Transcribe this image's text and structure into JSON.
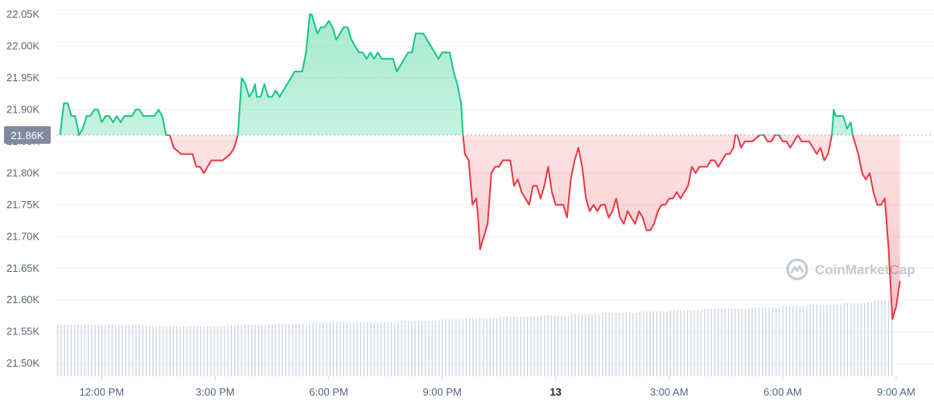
{
  "chart_data": {
    "type": "area",
    "baseline": 21.86,
    "baseline_label": "21.86K",
    "ylim": [
      21.48,
      22.06
    ],
    "yticks": [
      21.5,
      21.55,
      21.6,
      21.65,
      21.7,
      21.75,
      21.8,
      21.85,
      21.9,
      21.95,
      22.0,
      22.05
    ],
    "ytick_labels": [
      "21.50K",
      "21.55K",
      "21.60K",
      "21.65K",
      "21.70K",
      "21.75K",
      "21.80K",
      "21.85K",
      "21.90K",
      "21.95K",
      "22.00K",
      "22.05K"
    ],
    "xlim": [
      10.8,
      34.0
    ],
    "xticks": [
      12,
      15,
      18,
      21,
      24,
      27,
      30,
      33
    ],
    "xtick_labels": [
      "12:00 PM",
      "3:00 PM",
      "6:00 PM",
      "9:00 PM",
      "13",
      "3:00 AM",
      "6:00 AM",
      "9:00 AM"
    ],
    "xtick_bold": [
      false,
      false,
      false,
      false,
      true,
      false,
      false,
      false
    ],
    "colors": {
      "up": "#16c784",
      "down": "#ea3943",
      "volume": "#cfd6e4"
    },
    "watermark": "CoinMarketCap",
    "series": [
      {
        "points": [
          [
            10.9,
            21.86
          ],
          [
            11.0,
            21.91
          ],
          [
            11.1,
            21.91
          ],
          [
            11.2,
            21.89
          ],
          [
            11.3,
            21.89
          ],
          [
            11.4,
            21.86
          ],
          [
            11.5,
            21.87
          ],
          [
            11.6,
            21.89
          ],
          [
            11.7,
            21.89
          ],
          [
            11.8,
            21.9
          ],
          [
            11.9,
            21.9
          ],
          [
            12.0,
            21.88
          ],
          [
            12.1,
            21.89
          ],
          [
            12.2,
            21.89
          ],
          [
            12.3,
            21.88
          ],
          [
            12.4,
            21.89
          ],
          [
            12.5,
            21.88
          ],
          [
            12.6,
            21.89
          ],
          [
            12.7,
            21.89
          ],
          [
            12.8,
            21.89
          ],
          [
            12.9,
            21.9
          ],
          [
            13.0,
            21.9
          ],
          [
            13.1,
            21.89
          ],
          [
            13.2,
            21.89
          ],
          [
            13.4,
            21.89
          ],
          [
            13.5,
            21.9
          ],
          [
            13.6,
            21.89
          ],
          [
            13.7,
            21.86
          ],
          [
            13.8,
            21.86
          ],
          [
            13.9,
            21.84
          ],
          [
            14.1,
            21.83
          ],
          [
            14.2,
            21.83
          ],
          [
            14.4,
            21.83
          ],
          [
            14.5,
            21.81
          ],
          [
            14.6,
            21.81
          ],
          [
            14.7,
            21.8
          ],
          [
            14.8,
            21.81
          ],
          [
            14.9,
            21.82
          ],
          [
            15.0,
            21.82
          ],
          [
            15.2,
            21.82
          ],
          [
            15.4,
            21.83
          ],
          [
            15.5,
            21.84
          ],
          [
            15.6,
            21.86
          ],
          [
            15.7,
            21.95
          ],
          [
            15.8,
            21.94
          ],
          [
            15.9,
            21.92
          ],
          [
            16.0,
            21.93
          ],
          [
            16.05,
            21.94
          ],
          [
            16.1,
            21.92
          ],
          [
            16.2,
            21.92
          ],
          [
            16.3,
            21.94
          ],
          [
            16.4,
            21.92
          ],
          [
            16.5,
            21.92
          ],
          [
            16.6,
            21.93
          ],
          [
            16.7,
            21.92
          ],
          [
            16.8,
            21.93
          ],
          [
            16.9,
            21.94
          ],
          [
            17.0,
            21.95
          ],
          [
            17.1,
            21.96
          ],
          [
            17.2,
            21.96
          ],
          [
            17.3,
            21.96
          ],
          [
            17.4,
            21.99
          ],
          [
            17.5,
            22.05
          ],
          [
            17.55,
            22.05
          ],
          [
            17.6,
            22.04
          ],
          [
            17.7,
            22.02
          ],
          [
            17.8,
            22.03
          ],
          [
            17.9,
            22.03
          ],
          [
            18.0,
            22.04
          ],
          [
            18.1,
            22.03
          ],
          [
            18.2,
            22.01
          ],
          [
            18.3,
            22.02
          ],
          [
            18.4,
            22.03
          ],
          [
            18.5,
            22.03
          ],
          [
            18.6,
            22.01
          ],
          [
            18.7,
            22.0
          ],
          [
            18.8,
            21.99
          ],
          [
            18.9,
            21.99
          ],
          [
            19.0,
            21.98
          ],
          [
            19.1,
            21.99
          ],
          [
            19.2,
            21.98
          ],
          [
            19.3,
            21.99
          ],
          [
            19.4,
            21.98
          ],
          [
            19.5,
            21.98
          ],
          [
            19.7,
            21.98
          ],
          [
            19.8,
            21.96
          ],
          [
            19.9,
            21.97
          ],
          [
            20.0,
            21.98
          ],
          [
            20.1,
            21.99
          ],
          [
            20.2,
            21.99
          ],
          [
            20.3,
            22.02
          ],
          [
            20.4,
            22.02
          ],
          [
            20.5,
            22.02
          ],
          [
            20.6,
            22.01
          ],
          [
            20.7,
            22.0
          ],
          [
            20.8,
            21.99
          ],
          [
            20.9,
            21.98
          ],
          [
            21.0,
            21.99
          ],
          [
            21.2,
            21.99
          ],
          [
            21.3,
            21.96
          ],
          [
            21.4,
            21.94
          ],
          [
            21.5,
            21.91
          ],
          [
            21.55,
            21.86
          ],
          [
            21.6,
            21.83
          ],
          [
            21.7,
            21.82
          ],
          [
            21.8,
            21.75
          ],
          [
            21.9,
            21.76
          ],
          [
            21.95,
            21.73
          ],
          [
            22.0,
            21.68
          ],
          [
            22.1,
            21.7
          ],
          [
            22.2,
            21.72
          ],
          [
            22.3,
            21.8
          ],
          [
            22.4,
            21.81
          ],
          [
            22.5,
            21.81
          ],
          [
            22.6,
            21.82
          ],
          [
            22.7,
            21.82
          ],
          [
            22.8,
            21.82
          ],
          [
            22.9,
            21.78
          ],
          [
            23.0,
            21.79
          ],
          [
            23.1,
            21.77
          ],
          [
            23.2,
            21.76
          ],
          [
            23.3,
            21.75
          ],
          [
            23.4,
            21.78
          ],
          [
            23.5,
            21.78
          ],
          [
            23.6,
            21.76
          ],
          [
            23.7,
            21.78
          ],
          [
            23.8,
            21.81
          ],
          [
            23.9,
            21.77
          ],
          [
            24.0,
            21.75
          ],
          [
            24.1,
            21.75
          ],
          [
            24.2,
            21.75
          ],
          [
            24.3,
            21.73
          ],
          [
            24.4,
            21.79
          ],
          [
            24.5,
            21.82
          ],
          [
            24.6,
            21.84
          ],
          [
            24.7,
            21.81
          ],
          [
            24.8,
            21.76
          ],
          [
            24.9,
            21.74
          ],
          [
            25.0,
            21.75
          ],
          [
            25.1,
            21.74
          ],
          [
            25.2,
            21.75
          ],
          [
            25.3,
            21.75
          ],
          [
            25.4,
            21.73
          ],
          [
            25.5,
            21.74
          ],
          [
            25.6,
            21.76
          ],
          [
            25.7,
            21.73
          ],
          [
            25.8,
            21.72
          ],
          [
            25.9,
            21.74
          ],
          [
            26.0,
            21.73
          ],
          [
            26.1,
            21.72
          ],
          [
            26.2,
            21.74
          ],
          [
            26.3,
            21.73
          ],
          [
            26.4,
            21.71
          ],
          [
            26.5,
            21.71
          ],
          [
            26.6,
            21.72
          ],
          [
            26.7,
            21.74
          ],
          [
            26.8,
            21.75
          ],
          [
            26.9,
            21.75
          ],
          [
            27.0,
            21.76
          ],
          [
            27.1,
            21.76
          ],
          [
            27.2,
            21.77
          ],
          [
            27.3,
            21.76
          ],
          [
            27.4,
            21.77
          ],
          [
            27.5,
            21.78
          ],
          [
            27.6,
            21.81
          ],
          [
            27.7,
            21.8
          ],
          [
            27.8,
            21.81
          ],
          [
            27.9,
            21.81
          ],
          [
            28.0,
            21.81
          ],
          [
            28.1,
            21.82
          ],
          [
            28.2,
            21.82
          ],
          [
            28.3,
            21.81
          ],
          [
            28.4,
            21.82
          ],
          [
            28.5,
            21.83
          ],
          [
            28.6,
            21.83
          ],
          [
            28.7,
            21.84
          ],
          [
            28.75,
            21.86
          ],
          [
            28.8,
            21.86
          ],
          [
            28.9,
            21.84
          ],
          [
            29.0,
            21.85
          ],
          [
            29.1,
            21.85
          ],
          [
            29.2,
            21.85
          ],
          [
            29.4,
            21.86
          ],
          [
            29.5,
            21.86
          ],
          [
            29.6,
            21.85
          ],
          [
            29.7,
            21.85
          ],
          [
            29.8,
            21.86
          ],
          [
            29.9,
            21.86
          ],
          [
            30.0,
            21.85
          ],
          [
            30.1,
            21.85
          ],
          [
            30.2,
            21.84
          ],
          [
            30.3,
            21.85
          ],
          [
            30.4,
            21.86
          ],
          [
            30.5,
            21.85
          ],
          [
            30.6,
            21.85
          ],
          [
            30.7,
            21.85
          ],
          [
            30.8,
            21.84
          ],
          [
            30.9,
            21.83
          ],
          [
            31.0,
            21.84
          ],
          [
            31.1,
            21.82
          ],
          [
            31.2,
            21.83
          ],
          [
            31.3,
            21.86
          ],
          [
            31.35,
            21.9
          ],
          [
            31.4,
            21.89
          ],
          [
            31.5,
            21.89
          ],
          [
            31.6,
            21.89
          ],
          [
            31.7,
            21.87
          ],
          [
            31.8,
            21.88
          ],
          [
            31.85,
            21.86
          ],
          [
            31.9,
            21.85
          ],
          [
            32.0,
            21.83
          ],
          [
            32.1,
            21.8
          ],
          [
            32.2,
            21.79
          ],
          [
            32.3,
            21.8
          ],
          [
            32.4,
            21.77
          ],
          [
            32.5,
            21.75
          ],
          [
            32.6,
            21.75
          ],
          [
            32.7,
            21.76
          ],
          [
            32.8,
            21.68
          ],
          [
            32.9,
            21.57
          ],
          [
            33.0,
            21.59
          ],
          [
            33.1,
            21.63
          ]
        ]
      }
    ],
    "volume": {
      "ylim": [
        0,
        100
      ],
      "x_start": 10.82,
      "x_step": 0.09,
      "values": [
        38,
        38,
        38,
        38,
        38,
        38,
        38,
        38,
        38,
        38,
        38,
        38,
        38,
        38,
        38,
        38,
        38,
        38,
        38,
        38,
        38,
        38,
        38,
        38,
        38,
        38,
        37,
        37,
        37,
        37,
        37,
        37,
        37,
        37,
        37,
        37,
        37,
        37,
        37,
        37,
        37,
        37,
        37,
        37,
        37,
        37,
        37,
        37,
        37,
        37,
        38,
        38,
        38,
        38,
        38,
        38,
        38,
        38,
        38,
        38,
        38,
        38,
        38,
        38,
        39,
        39,
        39,
        39,
        39,
        39,
        39,
        39,
        39,
        39,
        40,
        40,
        40,
        40,
        40,
        40,
        40,
        40,
        40,
        40,
        40,
        40,
        40,
        40,
        40,
        40,
        40,
        40,
        40,
        40,
        40,
        40,
        40,
        40,
        40,
        40,
        41,
        41,
        41,
        41,
        41,
        41,
        41,
        41,
        41,
        41,
        41,
        41,
        41,
        42,
        42,
        42,
        42,
        42,
        42,
        42,
        43,
        43,
        43,
        43,
        43,
        43,
        43,
        43,
        43,
        43,
        44,
        44,
        44,
        44,
        44,
        44,
        44,
        44,
        44,
        44,
        44,
        44,
        45,
        45,
        45,
        45,
        45,
        45,
        45,
        45,
        45,
        46,
        46,
        46,
        46,
        46,
        46,
        46,
        46,
        46,
        47,
        47,
        47,
        47,
        47,
        47,
        47,
        47,
        47,
        47,
        47,
        48,
        48,
        48,
        48,
        48,
        48,
        48,
        48,
        48,
        49,
        49,
        49,
        49,
        49,
        49,
        49,
        49,
        49,
        49,
        50,
        50,
        50,
        50,
        50,
        50,
        50,
        50,
        50,
        50,
        50,
        50,
        50,
        50,
        51,
        51,
        51,
        51,
        51,
        51,
        51,
        51,
        51,
        52,
        52,
        52,
        52,
        52,
        52,
        52,
        52,
        53,
        53,
        53,
        53,
        53,
        53,
        53,
        53,
        53,
        53,
        54,
        54,
        54,
        54,
        54,
        54,
        54,
        55,
        55,
        56,
        56,
        56,
        56,
        56,
        56
      ]
    }
  }
}
